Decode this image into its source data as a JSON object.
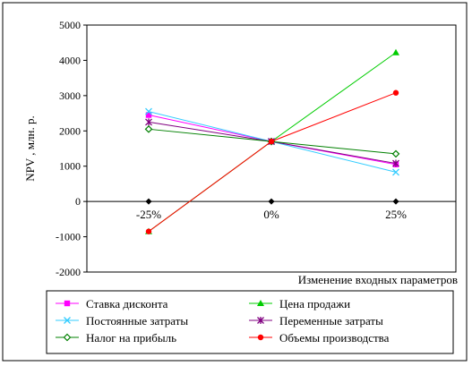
{
  "chart_data": {
    "type": "line",
    "title": "",
    "ylabel": "NPV , млн. р.",
    "xlabel": "Изменение входных параметров",
    "ylim": [
      -2000,
      5000
    ],
    "yticks": [
      -2000,
      -1000,
      0,
      1000,
      2000,
      3000,
      4000,
      5000
    ],
    "categories": [
      "-25%",
      "0%",
      "25%"
    ],
    "grid": false,
    "legend_position": "bottom",
    "series": [
      {
        "name": "Ставка дисконта",
        "color": "#ff00ff",
        "marker": "square",
        "values": [
          2450,
          1700,
          1050
        ]
      },
      {
        "name": "Цена продажи",
        "color": "#00cc00",
        "marker": "triangle",
        "values": [
          -850,
          1700,
          4220
        ]
      },
      {
        "name": "Постоянные затраты",
        "color": "#33ccff",
        "marker": "x",
        "values": [
          2550,
          1700,
          830
        ]
      },
      {
        "name": "Переменные затраты",
        "color": "#800080",
        "marker": "star",
        "values": [
          2250,
          1700,
          1080
        ]
      },
      {
        "name": "Налог на прибыль",
        "color": "#008000",
        "marker": "diamond",
        "values": [
          2050,
          1700,
          1350
        ]
      },
      {
        "name": "Объемы производства",
        "color": "#ff0000",
        "marker": "circle",
        "values": [
          -850,
          1700,
          3080
        ]
      }
    ]
  }
}
